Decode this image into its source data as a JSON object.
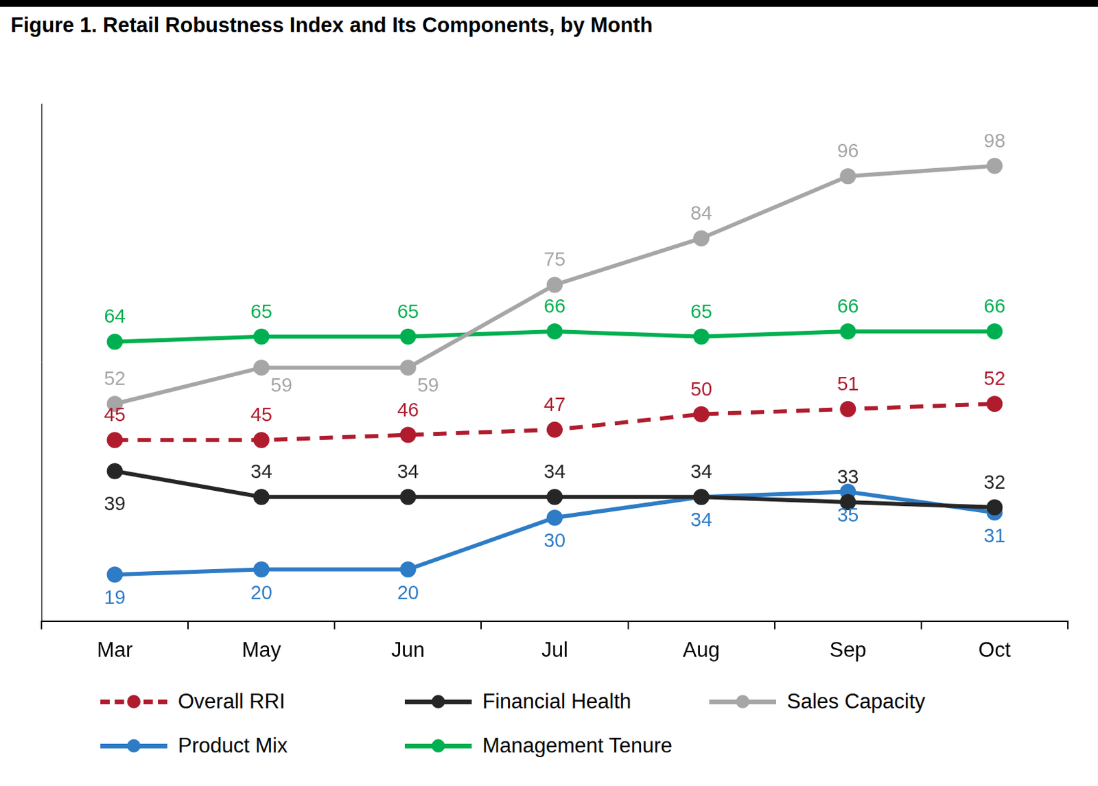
{
  "chart_data": {
    "type": "line",
    "title": "Figure 1. Retail Robustness Index and Its Components, by Month",
    "categories": [
      "Mar",
      "May",
      "Jun",
      "Jul",
      "Aug",
      "Sep",
      "Oct"
    ],
    "series": [
      {
        "name": "Overall RRI",
        "color": "#B01C2E",
        "line_style": "dashed",
        "marker": "circle",
        "values": [
          45,
          45,
          46,
          47,
          50,
          51,
          52
        ]
      },
      {
        "name": "Financial Health",
        "color": "#262626",
        "line_style": "solid",
        "marker": "circle",
        "values": [
          39,
          34,
          34,
          34,
          34,
          33,
          32
        ]
      },
      {
        "name": "Sales Capacity",
        "color": "#A6A6A6",
        "line_style": "solid",
        "marker": "circle",
        "values": [
          52,
          59,
          59,
          75,
          84,
          96,
          98
        ]
      },
      {
        "name": "Product Mix",
        "color": "#2E7CC6",
        "line_style": "solid",
        "marker": "circle",
        "values": [
          19,
          20,
          20,
          30,
          34,
          35,
          31
        ]
      },
      {
        "name": "Management Tenure",
        "color": "#00B050",
        "line_style": "solid",
        "marker": "circle",
        "values": [
          64,
          65,
          65,
          66,
          65,
          66,
          66
        ]
      }
    ],
    "ylim": [
      10,
      110
    ],
    "grid": false,
    "legend": "bottom",
    "data_labels": true,
    "tick_labels": "x"
  }
}
